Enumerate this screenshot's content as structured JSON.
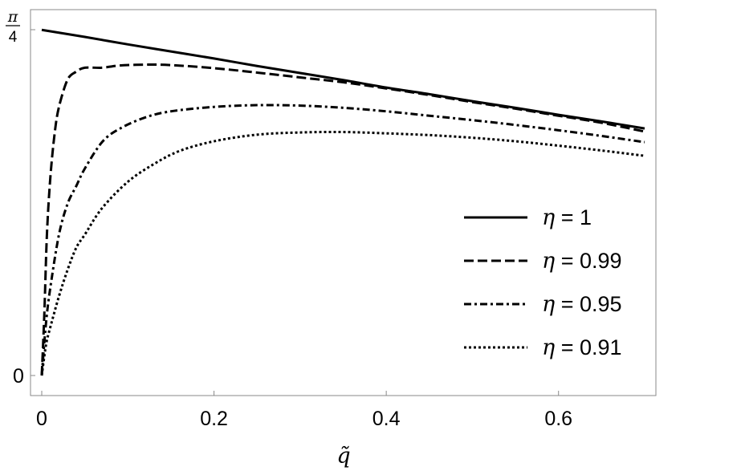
{
  "chart_data": {
    "type": "line",
    "xlabel": "q̃",
    "ylabel": "",
    "xlim": [
      0,
      0.7
    ],
    "ylim": [
      0,
      0.7854
    ],
    "x_ticks": [
      {
        "value": 0,
        "label": "0"
      },
      {
        "value": 0.2,
        "label": "0.2"
      },
      {
        "value": 0.4,
        "label": "0.4"
      },
      {
        "value": 0.6,
        "label": "0.6"
      }
    ],
    "y_ticks": [
      {
        "value": 0,
        "label": "0"
      },
      {
        "value": 0.7854,
        "label_num": "π",
        "label_den": "4"
      }
    ],
    "legend_position": "lower-right",
    "series": [
      {
        "name": "η = 1",
        "legend_symbol": "η",
        "legend_value": " = 1",
        "style": "solid",
        "x": [
          0,
          0.05,
          0.1,
          0.15,
          0.2,
          0.25,
          0.3,
          0.35,
          0.4,
          0.45,
          0.5,
          0.55,
          0.6,
          0.65,
          0.7
        ],
        "y": [
          0.785,
          0.769,
          0.752,
          0.736,
          0.72,
          0.703,
          0.687,
          0.671,
          0.654,
          0.639,
          0.623,
          0.608,
          0.592,
          0.577,
          0.561
        ]
      },
      {
        "name": "η = 0.99",
        "legend_symbol": "η",
        "legend_value": " = 0.99",
        "style": "dashed",
        "x": [
          0,
          0.003,
          0.006,
          0.01,
          0.015,
          0.02,
          0.03,
          0.04,
          0.05,
          0.07,
          0.09,
          0.12,
          0.15,
          0.2,
          0.25,
          0.3,
          0.35,
          0.4,
          0.45,
          0.5,
          0.55,
          0.6,
          0.65,
          0.7
        ],
        "y": [
          0.0,
          0.14,
          0.32,
          0.45,
          0.55,
          0.61,
          0.672,
          0.69,
          0.699,
          0.699,
          0.704,
          0.706,
          0.705,
          0.698,
          0.688,
          0.677,
          0.666,
          0.652,
          0.637,
          0.621,
          0.606,
          0.59,
          0.574,
          0.554
        ]
      },
      {
        "name": "η = 0.95",
        "legend_symbol": "η",
        "legend_value": " = 0.95",
        "style": "dashdot",
        "x": [
          0,
          0.005,
          0.01,
          0.02,
          0.03,
          0.04,
          0.05,
          0.07,
          0.09,
          0.12,
          0.15,
          0.2,
          0.25,
          0.3,
          0.35,
          0.4,
          0.45,
          0.5,
          0.55,
          0.6,
          0.65,
          0.7
        ],
        "y": [
          0.0,
          0.12,
          0.2,
          0.32,
          0.39,
          0.43,
          0.47,
          0.53,
          0.56,
          0.586,
          0.6,
          0.61,
          0.614,
          0.613,
          0.608,
          0.6,
          0.59,
          0.58,
          0.569,
          0.557,
          0.544,
          0.53
        ]
      },
      {
        "name": "η = 0.91",
        "legend_symbol": "η",
        "legend_value": " = 0.91",
        "style": "dotted",
        "x": [
          0,
          0.005,
          0.01,
          0.02,
          0.03,
          0.04,
          0.05,
          0.07,
          0.1,
          0.13,
          0.16,
          0.2,
          0.25,
          0.3,
          0.35,
          0.4,
          0.45,
          0.5,
          0.55,
          0.6,
          0.65,
          0.7
        ],
        "y": [
          0.0,
          0.07,
          0.11,
          0.18,
          0.24,
          0.29,
          0.32,
          0.38,
          0.44,
          0.48,
          0.51,
          0.532,
          0.547,
          0.552,
          0.553,
          0.55,
          0.546,
          0.54,
          0.532,
          0.522,
          0.511,
          0.499
        ]
      }
    ]
  }
}
